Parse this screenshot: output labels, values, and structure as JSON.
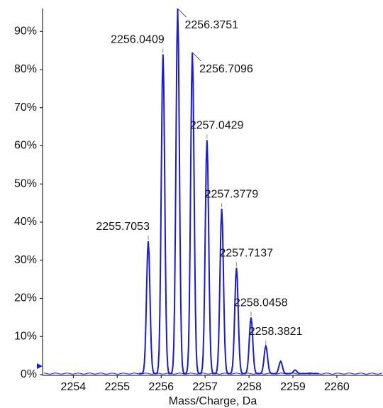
{
  "chart_data": {
    "type": "line",
    "x_label": "Mass/Charge, Da",
    "x": [
      2255.7053,
      2256.0409,
      2256.3751,
      2256.7096,
      2257.0429,
      2257.3779,
      2257.7137,
      2258.0458,
      2258.3821,
      2258.72,
      2259.05,
      2259.38
    ],
    "values": [
      35,
      84,
      96,
      84.5,
      61.5,
      43.5,
      28,
      15,
      7.5,
      3.5,
      1.2,
      0.4
    ],
    "point_labels": [
      "2255.7053",
      "2256.0409",
      "2256.3751",
      "2256.7096",
      "2257.0429",
      "2257.3779",
      "2257.7137",
      "2258.0458",
      "2258.3821",
      null,
      null,
      null
    ],
    "color": "#1a1adc",
    "xlim": [
      2253.3,
      2261.05
    ],
    "xticks": [
      2254,
      2255,
      2256,
      2257,
      2258,
      2259,
      2260
    ],
    "ylim": [
      0,
      96
    ],
    "yticks": [
      {
        "value": 0,
        "label": "0%"
      },
      {
        "value": 10,
        "label": "10%"
      },
      {
        "value": 20,
        "label": "20%"
      },
      {
        "value": 30,
        "label": "30%"
      },
      {
        "value": 40,
        "label": "40%"
      },
      {
        "value": 50,
        "label": "50%"
      },
      {
        "value": 60,
        "label": "60%"
      },
      {
        "value": 70,
        "label": "70%"
      },
      {
        "value": 80,
        "label": "80%"
      },
      {
        "value": 90,
        "label": "90%"
      }
    ]
  }
}
